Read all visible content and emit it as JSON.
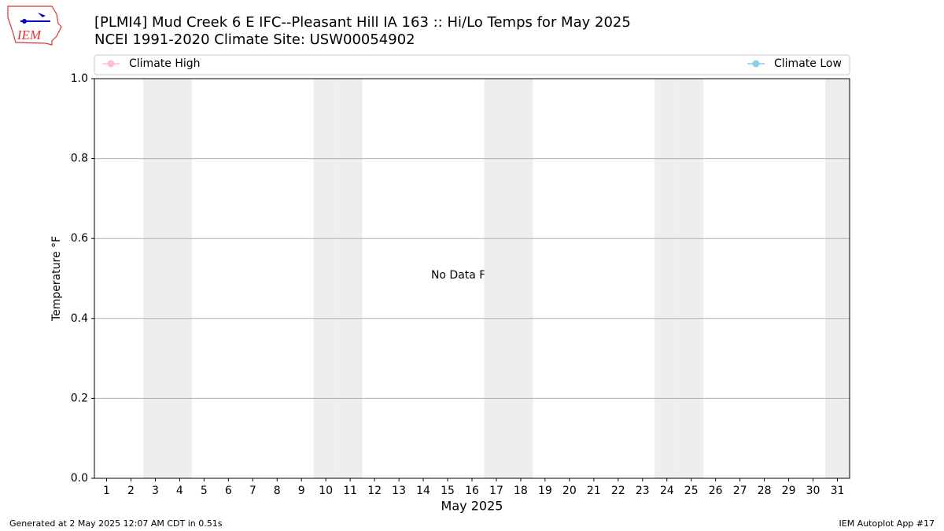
{
  "chart_data": {
    "type": "line",
    "title": "[PLMI4] Mud Creek 6 E IFC--Pleasant Hill IA 163 :: Hi/Lo Temps for May 2025",
    "subtitle": "NCEI 1991-2020 Climate Site: USW00054902",
    "logo_text": "IEM",
    "xlabel": "May 2025",
    "ylabel": "Temperature °F",
    "annotation": "No Data Found",
    "x": [],
    "series": [
      {
        "name": "Climate High",
        "color": "#ffc0cb",
        "values": []
      },
      {
        "name": "Climate Low",
        "color": "#87ceeb",
        "values": []
      }
    ],
    "xlim": [
      0.5,
      31.5
    ],
    "xticks": [
      1,
      2,
      3,
      4,
      5,
      6,
      7,
      8,
      9,
      10,
      11,
      12,
      13,
      14,
      15,
      16,
      17,
      18,
      19,
      20,
      21,
      22,
      23,
      24,
      25,
      26,
      27,
      28,
      29,
      30,
      31
    ],
    "shaded_days": [
      3,
      4,
      10,
      11,
      17,
      18,
      24,
      25,
      31
    ],
    "ylim": [
      0,
      1
    ],
    "yticks": [
      {
        "value": 0,
        "label": "0.0"
      },
      0.2,
      0.4,
      0.6,
      0.8,
      {
        "value": 1,
        "label": "1.0"
      }
    ],
    "grid": true,
    "footer_left": "Generated at 2 May 2025 12:07 AM CDT in 0.51s",
    "footer_right": "IEM Autoplot App #17"
  }
}
